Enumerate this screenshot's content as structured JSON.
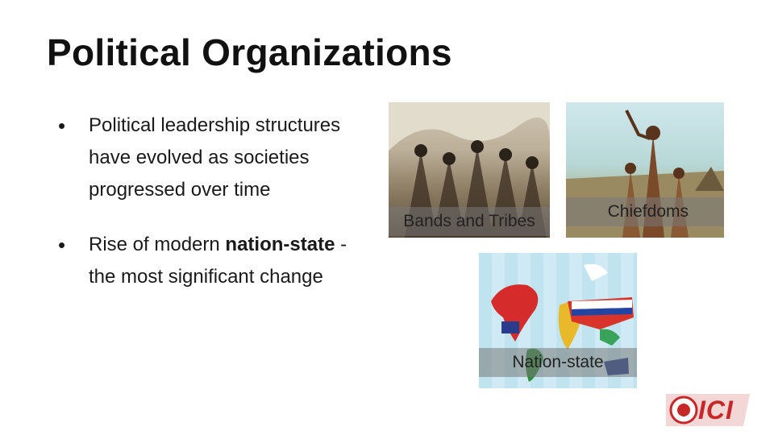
{
  "slide": {
    "title": "Political Organizations",
    "bullets": [
      {
        "text": "Political leadership structures have evolved as societies progressed over time"
      },
      {
        "prefix": "Rise of modern ",
        "bold": "nation-state",
        "suffix": " - the most significant change"
      }
    ]
  },
  "images": {
    "bands": {
      "caption": "Bands and Tribes"
    },
    "chiefdoms": {
      "caption": "Chiefdoms"
    },
    "nation_state": {
      "caption": "Nation-state"
    }
  },
  "logo": {
    "text": "ICI"
  },
  "colors": {
    "logo_red": "#c62828",
    "caption_overlay": "#787878"
  }
}
